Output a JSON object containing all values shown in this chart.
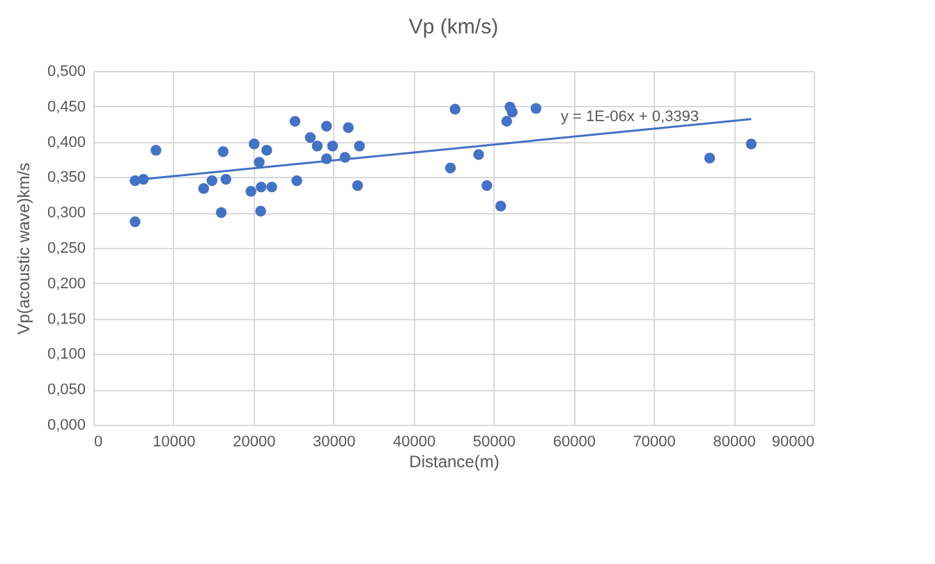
{
  "chart_data": {
    "type": "scatter",
    "title": "Vp (km/s)",
    "xlabel": "Distance(m)",
    "ylabel": "Vp(acoustic wave)km/s",
    "xlim": [
      0,
      90000
    ],
    "xticks": [
      0,
      10000,
      20000,
      30000,
      40000,
      50000,
      60000,
      70000,
      80000,
      90000
    ],
    "ylim": [
      0,
      0.5
    ],
    "yticks": [
      {
        "value": 0,
        "label": "0,000"
      },
      {
        "value": 0.05,
        "label": "0,050"
      },
      {
        "value": 0.1,
        "label": "0,100"
      },
      {
        "value": 0.15,
        "label": "0,150"
      },
      {
        "value": 0.2,
        "label": "0,200"
      },
      {
        "value": 0.25,
        "label": "0,250"
      },
      {
        "value": 0.3,
        "label": "0,300"
      },
      {
        "value": 0.35,
        "label": "0,350"
      },
      {
        "value": 0.4,
        "label": "0,400"
      },
      {
        "value": 0.45,
        "label": "0,450"
      },
      {
        "value": 0.5,
        "label": "0,500"
      }
    ],
    "grid": true,
    "series": [
      {
        "marker": "circle",
        "color": "#4472c4",
        "x": [
          5210,
          6250,
          5210,
          7820,
          13780,
          14820,
          16210,
          16560,
          15980,
          19690,
          20090,
          20730,
          20960,
          21660,
          22290,
          20900,
          25190,
          25420,
          27100,
          27970,
          29130,
          29130,
          29880,
          31440,
          31850,
          33240,
          33010,
          45190,
          44610,
          48130,
          49160,
          50890,
          51640,
          52050,
          52330,
          55300,
          77000,
          82190
        ],
        "values": [
          0.345,
          0.347,
          0.287,
          0.388,
          0.334,
          0.345,
          0.386,
          0.347,
          0.3,
          0.33,
          0.397,
          0.371,
          0.336,
          0.388,
          0.336,
          0.302,
          0.429,
          0.345,
          0.406,
          0.394,
          0.422,
          0.376,
          0.394,
          0.378,
          0.42,
          0.394,
          0.338,
          0.446,
          0.363,
          0.382,
          0.338,
          0.309,
          0.429,
          0.449,
          0.442,
          0.447,
          0.377,
          0.397
        ]
      },
      {
        "type": "line",
        "color": "#4472c4",
        "x": [
          5210,
          82190
        ],
        "values": [
          0.346,
          0.432
        ]
      }
    ],
    "annotations": [
      "y = 1E-06x + 0,3393"
    ]
  }
}
